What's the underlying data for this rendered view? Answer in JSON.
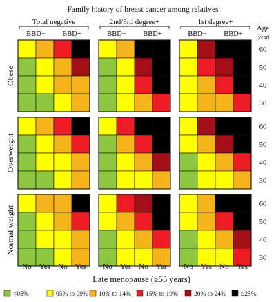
{
  "chart_data": {
    "type": "heatmap",
    "title": "Family history of breast cancer among relatives",
    "column_groups": [
      "Total negative",
      "2nd/3rd degree+",
      "1st degree+"
    ],
    "bbd_labels": [
      "BBD−",
      "BBD+"
    ],
    "row_groups": [
      "Obese",
      "Overweight",
      "Normal weight"
    ],
    "age_label": "Age",
    "age_unit": "(year)",
    "ages": [
      "60",
      "50",
      "40",
      "30"
    ],
    "menopause_ticks": [
      "No",
      "Yes",
      "No",
      "Yes"
    ],
    "xlabel": "Late menopause (≥55 years)",
    "legend": [
      {
        "label": "<05%",
        "color": "#8dc63f"
      },
      {
        "label": "05% to 09%",
        "color": "#ffff00"
      },
      {
        "label": "10% to 14%",
        "color": "#f4b41a"
      },
      {
        "label": "15% to 19%",
        "color": "#ee1c25"
      },
      {
        "label": "20% to 24%",
        "color": "#a30f16"
      },
      {
        "label": "≥25%",
        "color": "#000000"
      }
    ],
    "risk_levels": [
      [
        [
          [
            1,
            2,
            3,
            5
          ],
          [
            0,
            1,
            2,
            4
          ],
          [
            0,
            1,
            2,
            2
          ],
          [
            0,
            0,
            1,
            2
          ]
        ],
        [
          [
            1,
            2,
            5,
            5
          ],
          [
            0,
            1,
            4,
            5
          ],
          [
            0,
            1,
            3,
            5
          ],
          [
            0,
            1,
            2,
            3
          ]
        ],
        [
          [
            1,
            4,
            5,
            5
          ],
          [
            1,
            3,
            4,
            5
          ],
          [
            1,
            2,
            3,
            5
          ],
          [
            1,
            2,
            2,
            3
          ]
        ]
      ],
      [
        [
          [
            1,
            2,
            3,
            5
          ],
          [
            0,
            1,
            2,
            3
          ],
          [
            0,
            1,
            1,
            2
          ],
          [
            0,
            0,
            1,
            2
          ]
        ],
        [
          [
            1,
            3,
            5,
            5
          ],
          [
            0,
            2,
            3,
            5
          ],
          [
            0,
            1,
            2,
            4
          ],
          [
            0,
            1,
            1,
            2
          ]
        ],
        [
          [
            1,
            4,
            5,
            5
          ],
          [
            1,
            2,
            4,
            5
          ],
          [
            0,
            1,
            2,
            3
          ],
          [
            0,
            1,
            1,
            2
          ]
        ]
      ],
      [
        [
          [
            1,
            2,
            2,
            5
          ],
          [
            0,
            1,
            2,
            3
          ],
          [
            0,
            1,
            1,
            2
          ],
          [
            0,
            0,
            1,
            2
          ]
        ],
        [
          [
            1,
            3,
            4,
            5
          ],
          [
            1,
            2,
            3,
            5
          ],
          [
            0,
            1,
            2,
            3
          ],
          [
            0,
            1,
            1,
            2
          ]
        ],
        [
          [
            1,
            2,
            5,
            5
          ],
          [
            1,
            2,
            3,
            5
          ],
          [
            0,
            1,
            2,
            4
          ],
          [
            0,
            1,
            1,
            3
          ]
        ]
      ]
    ]
  }
}
